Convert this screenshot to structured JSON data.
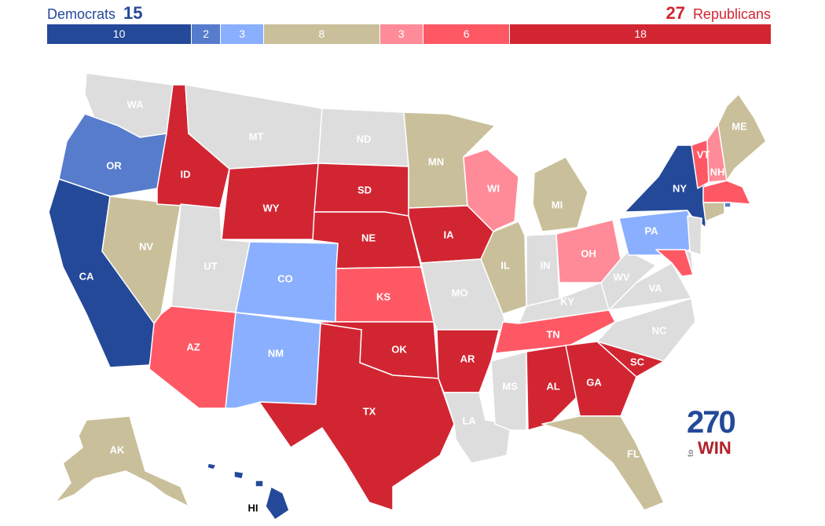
{
  "header": {
    "dem_label": "Democrats",
    "dem_total": "15",
    "rep_total": "27",
    "rep_label": "Republicans"
  },
  "colors": {
    "safe_dem": "#244999",
    "likely_dem": "#577ccc",
    "lean_dem": "#8aafff",
    "tossup": "#c9c09b",
    "lean_rep": "#ff8b98",
    "likely_rep": "#ff5865",
    "safe_rep": "#d22532",
    "no_race": "#dddddd"
  },
  "tally": [
    {
      "key": "safe_dem",
      "value": 10,
      "label": "10"
    },
    {
      "key": "likely_dem",
      "value": 2,
      "label": "2"
    },
    {
      "key": "lean_dem",
      "value": 3,
      "label": "3"
    },
    {
      "key": "tossup",
      "value": 8,
      "label": "8"
    },
    {
      "key": "lean_rep",
      "value": 3,
      "label": "3"
    },
    {
      "key": "likely_rep",
      "value": 6,
      "label": "6"
    },
    {
      "key": "safe_rep",
      "value": 18,
      "label": "18"
    }
  ],
  "states": [
    {
      "abbr": "WA",
      "rating": "no_race"
    },
    {
      "abbr": "OR",
      "rating": "likely_dem"
    },
    {
      "abbr": "CA",
      "rating": "safe_dem"
    },
    {
      "abbr": "NV",
      "rating": "tossup"
    },
    {
      "abbr": "ID",
      "rating": "safe_rep"
    },
    {
      "abbr": "MT",
      "rating": "no_race"
    },
    {
      "abbr": "WY",
      "rating": "safe_rep"
    },
    {
      "abbr": "UT",
      "rating": "no_race"
    },
    {
      "abbr": "AZ",
      "rating": "likely_rep"
    },
    {
      "abbr": "CO",
      "rating": "lean_dem"
    },
    {
      "abbr": "NM",
      "rating": "lean_dem"
    },
    {
      "abbr": "ND",
      "rating": "no_race"
    },
    {
      "abbr": "SD",
      "rating": "safe_rep"
    },
    {
      "abbr": "NE",
      "rating": "safe_rep"
    },
    {
      "abbr": "KS",
      "rating": "likely_rep"
    },
    {
      "abbr": "OK",
      "rating": "safe_rep"
    },
    {
      "abbr": "TX",
      "rating": "safe_rep"
    },
    {
      "abbr": "MN",
      "rating": "tossup"
    },
    {
      "abbr": "IA",
      "rating": "safe_rep"
    },
    {
      "abbr": "MO",
      "rating": "no_race"
    },
    {
      "abbr": "AR",
      "rating": "safe_rep"
    },
    {
      "abbr": "LA",
      "rating": "no_race"
    },
    {
      "abbr": "WI",
      "rating": "lean_rep"
    },
    {
      "abbr": "IL",
      "rating": "tossup"
    },
    {
      "abbr": "MI",
      "rating": "tossup"
    },
    {
      "abbr": "IN",
      "rating": "no_race"
    },
    {
      "abbr": "OH",
      "rating": "lean_rep"
    },
    {
      "abbr": "KY",
      "rating": "no_race"
    },
    {
      "abbr": "TN",
      "rating": "likely_rep"
    },
    {
      "abbr": "MS",
      "rating": "no_race"
    },
    {
      "abbr": "AL",
      "rating": "safe_rep"
    },
    {
      "abbr": "GA",
      "rating": "safe_rep"
    },
    {
      "abbr": "FL",
      "rating": "tossup"
    },
    {
      "abbr": "SC",
      "rating": "safe_rep"
    },
    {
      "abbr": "NC",
      "rating": "no_race"
    },
    {
      "abbr": "VA",
      "rating": "no_race"
    },
    {
      "abbr": "WV",
      "rating": "no_race"
    },
    {
      "abbr": "PA",
      "rating": "lean_dem"
    },
    {
      "abbr": "NY",
      "rating": "safe_dem"
    },
    {
      "abbr": "VT",
      "rating": "likely_rep"
    },
    {
      "abbr": "NH",
      "rating": "lean_rep"
    },
    {
      "abbr": "ME",
      "rating": "tossup"
    },
    {
      "abbr": "MA",
      "rating": "likely_rep"
    },
    {
      "abbr": "RI",
      "rating": "likely_dem"
    },
    {
      "abbr": "CT",
      "rating": "tossup"
    },
    {
      "abbr": "NJ",
      "rating": "no_race"
    },
    {
      "abbr": "DE",
      "rating": "no_race"
    },
    {
      "abbr": "MD",
      "rating": "likely_rep"
    },
    {
      "abbr": "AK",
      "rating": "tossup"
    },
    {
      "abbr": "HI",
      "rating": "safe_dem"
    }
  ],
  "logo": {
    "number": "270",
    "small": "to",
    "word": "WIN"
  }
}
